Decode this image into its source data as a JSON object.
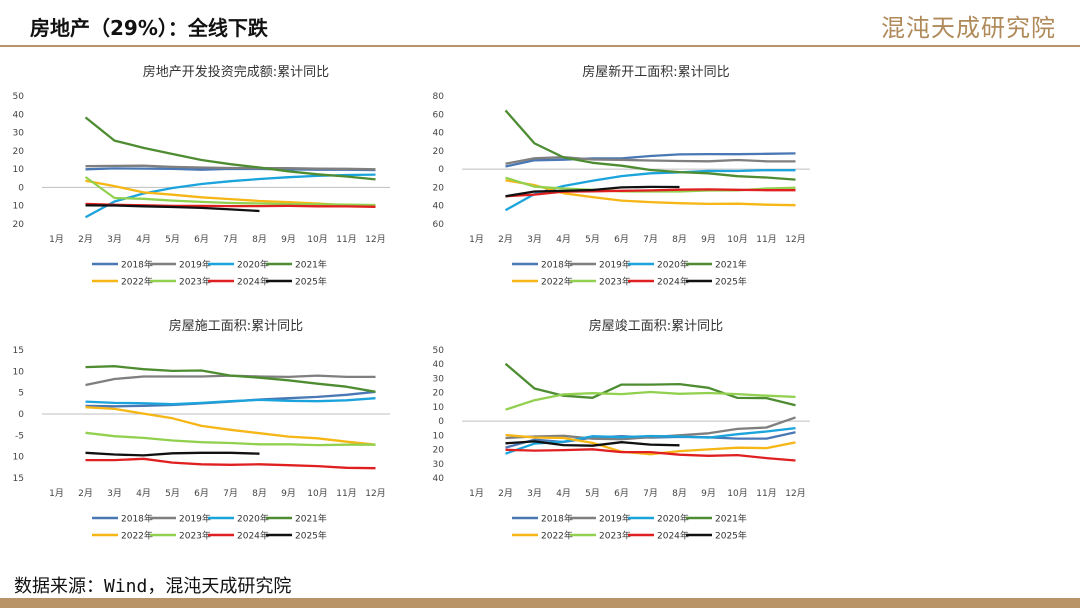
{
  "header": {
    "title": "房地产（29%）：全线下跌",
    "brand": "混沌天成研究院"
  },
  "footer": {
    "source": "数据来源：Wind，混沌天成研究院"
  },
  "colors": {
    "accent": "#b89466"
  },
  "chart_data": [
    {
      "type": "line",
      "title": "房地产开发投资完成额:累计同比",
      "categories": [
        "1月",
        "2月",
        "3月",
        "4月",
        "5月",
        "6月",
        "7月",
        "8月",
        "9月",
        "10月",
        "11月",
        "12月"
      ],
      "ylim": [
        -20,
        50
      ],
      "yticks": [
        -20,
        -10,
        0,
        10,
        20,
        30,
        40,
        50
      ],
      "series": [
        {
          "name": "2018年",
          "color": "#4a78b5",
          "values": [
            null,
            9.9,
            10.4,
            10.3,
            10.2,
            9.7,
            10.2,
            10.1,
            9.9,
            9.7,
            9.7,
            9.5
          ]
        },
        {
          "name": "2019年",
          "color": "#7f7f7f",
          "values": [
            null,
            11.6,
            11.8,
            11.9,
            11.2,
            10.9,
            10.6,
            10.5,
            10.5,
            10.3,
            10.2,
            9.9
          ]
        },
        {
          "name": "2020年",
          "color": "#1ba3dc",
          "values": [
            null,
            -16.3,
            -7.7,
            -3.3,
            -0.3,
            1.9,
            3.4,
            4.6,
            5.6,
            6.3,
            6.8,
            7.0
          ]
        },
        {
          "name": "2021年",
          "color": "#4e8c32",
          "values": [
            null,
            38.3,
            25.6,
            21.6,
            18.3,
            15.0,
            12.7,
            10.9,
            8.8,
            7.2,
            6.0,
            4.4
          ]
        },
        {
          "name": "2022年",
          "color": "#f5b616",
          "values": [
            null,
            3.7,
            0.7,
            -2.7,
            -4.0,
            -5.4,
            -6.4,
            -7.4,
            -8.0,
            -8.8,
            -9.8,
            -10.0
          ]
        },
        {
          "name": "2023年",
          "color": "#92d050",
          "values": [
            null,
            5.7,
            -5.8,
            -6.2,
            -7.2,
            -7.9,
            -8.5,
            -8.8,
            -9.1,
            -9.3,
            -9.4,
            -9.6
          ]
        },
        {
          "name": "2024年",
          "color": "#e02020",
          "values": [
            null,
            -9.0,
            -9.5,
            -9.8,
            -10.1,
            -10.1,
            -10.2,
            -10.2,
            -10.1,
            -10.3,
            -10.4,
            -10.6
          ]
        },
        {
          "name": "2025年",
          "color": "#111111",
          "values": [
            null,
            -9.8,
            -9.9,
            -10.3,
            -10.7,
            -11.2,
            -12.0,
            -12.9,
            null,
            null,
            null,
            null
          ]
        }
      ]
    },
    {
      "type": "line",
      "title": "房屋新开工面积:累计同比",
      "categories": [
        "1月",
        "2月",
        "3月",
        "4月",
        "5月",
        "6月",
        "7月",
        "8月",
        "9月",
        "10月",
        "11月",
        "12月"
      ],
      "ylim": [
        -60,
        80
      ],
      "yticks": [
        -60,
        -40,
        -20,
        0,
        20,
        40,
        60,
        80
      ],
      "series": [
        {
          "name": "2018年",
          "color": "#4a78b5",
          "values": [
            null,
            2.9,
            9.7,
            10.3,
            11.8,
            11.8,
            14.4,
            16.1,
            16.4,
            16.3,
            16.8,
            17.2
          ]
        },
        {
          "name": "2019年",
          "color": "#7f7f7f",
          "values": [
            null,
            6.0,
            11.9,
            13.1,
            10.5,
            10.1,
            9.5,
            8.9,
            8.6,
            10.0,
            8.6,
            8.5
          ]
        },
        {
          "name": "2020年",
          "color": "#1ba3dc",
          "values": [
            null,
            -44.9,
            -27.2,
            -18.4,
            -12.8,
            -7.6,
            -4.5,
            -3.6,
            -1.9,
            -2.0,
            -1.0,
            -1.2
          ]
        },
        {
          "name": "2021年",
          "color": "#4e8c32",
          "values": [
            null,
            64.3,
            28.2,
            12.8,
            6.9,
            3.8,
            -0.9,
            -3.2,
            -4.5,
            -7.7,
            -9.1,
            -11.4
          ]
        },
        {
          "name": "2022年",
          "color": "#f5b616",
          "values": [
            null,
            -12.2,
            -17.5,
            -26.3,
            -30.6,
            -34.4,
            -36.1,
            -37.2,
            -38.0,
            -37.8,
            -38.9,
            -39.4
          ]
        },
        {
          "name": "2023年",
          "color": "#92d050",
          "values": [
            null,
            -9.4,
            -19.2,
            -21.2,
            -22.6,
            -24.3,
            -24.5,
            -24.4,
            -23.4,
            -23.2,
            -21.2,
            -20.4
          ]
        },
        {
          "name": "2024年",
          "color": "#e02020",
          "values": [
            null,
            -29.7,
            -27.8,
            -24.6,
            -24.2,
            -23.7,
            -23.2,
            -22.5,
            -22.2,
            -22.6,
            -23.0,
            -23.0
          ]
        },
        {
          "name": "2025年",
          "color": "#111111",
          "values": [
            null,
            -29.6,
            -24.4,
            -23.8,
            -22.8,
            -20.0,
            -19.4,
            -19.5,
            null,
            null,
            null,
            null
          ]
        }
      ]
    },
    {
      "type": "line",
      "title": "房屋施工面积:累计同比",
      "categories": [
        "1月",
        "2月",
        "3月",
        "4月",
        "5月",
        "6月",
        "7月",
        "8月",
        "9月",
        "10月",
        "11月",
        "12月"
      ],
      "ylim": [
        -15,
        15
      ],
      "yticks": [
        -15,
        -10,
        -5,
        0,
        5,
        10,
        15
      ],
      "series": [
        {
          "name": "2018年",
          "color": "#4a78b5",
          "values": [
            null,
            1.9,
            1.8,
            1.9,
            2.1,
            2.5,
            2.9,
            3.4,
            3.7,
            4.0,
            4.5,
            5.2
          ]
        },
        {
          "name": "2019年",
          "color": "#7f7f7f",
          "values": [
            null,
            6.8,
            8.2,
            8.8,
            8.8,
            8.8,
            9.0,
            8.8,
            8.7,
            9.0,
            8.7,
            8.7
          ]
        },
        {
          "name": "2020年",
          "color": "#1ba3dc",
          "values": [
            null,
            2.9,
            2.6,
            2.5,
            2.3,
            2.6,
            3.0,
            3.3,
            3.1,
            3.0,
            3.2,
            3.7
          ]
        },
        {
          "name": "2021年",
          "color": "#4e8c32",
          "values": [
            null,
            11.0,
            11.2,
            10.5,
            10.1,
            10.2,
            9.0,
            8.5,
            7.9,
            7.1,
            6.4,
            5.2
          ]
        },
        {
          "name": "2022年",
          "color": "#f5b616",
          "values": [
            null,
            1.6,
            1.2,
            0.1,
            -1.0,
            -2.8,
            -3.7,
            -4.5,
            -5.3,
            -5.7,
            -6.5,
            -7.2
          ]
        },
        {
          "name": "2023年",
          "color": "#92d050",
          "values": [
            null,
            -4.4,
            -5.2,
            -5.6,
            -6.2,
            -6.6,
            -6.8,
            -7.1,
            -7.1,
            -7.3,
            -7.2,
            -7.2
          ]
        },
        {
          "name": "2024年",
          "color": "#e02020",
          "values": [
            null,
            -10.8,
            -10.8,
            -10.5,
            -11.4,
            -11.8,
            -11.9,
            -11.8,
            -12.0,
            -12.2,
            -12.6,
            -12.7
          ]
        },
        {
          "name": "2025年",
          "color": "#111111",
          "values": [
            null,
            -9.1,
            -9.5,
            -9.7,
            -9.2,
            -9.1,
            -9.1,
            -9.3,
            null,
            null,
            null,
            null
          ]
        }
      ]
    },
    {
      "type": "line",
      "title": "房屋竣工面积:累计同比",
      "categories": [
        "1月",
        "2月",
        "3月",
        "4月",
        "5月",
        "6月",
        "7月",
        "8月",
        "9月",
        "10月",
        "11月",
        "12月"
      ],
      "ylim": [
        -40,
        50
      ],
      "yticks": [
        -40,
        -30,
        -20,
        -10,
        0,
        10,
        20,
        30,
        40,
        50
      ],
      "series": [
        {
          "name": "2018年",
          "color": "#4a78b5",
          "values": [
            null,
            -18.6,
            -13.1,
            -14.7,
            -11.6,
            -10.6,
            -11.6,
            -11.0,
            -11.4,
            -12.3,
            -12.3,
            -7.8
          ]
        },
        {
          "name": "2019年",
          "color": "#7f7f7f",
          "values": [
            null,
            -11.9,
            -10.8,
            -10.3,
            -12.4,
            -12.7,
            -11.3,
            -10.0,
            -8.6,
            -5.5,
            -4.5,
            2.6
          ]
        },
        {
          "name": "2020年",
          "color": "#1ba3dc",
          "values": [
            null,
            -22.9,
            -15.8,
            -14.5,
            -10.6,
            -11.3,
            -10.5,
            -10.8,
            -11.6,
            -9.2,
            -7.3,
            -4.9
          ]
        },
        {
          "name": "2021年",
          "color": "#4e8c32",
          "values": [
            null,
            40.4,
            22.9,
            17.9,
            16.4,
            25.7,
            25.7,
            26.0,
            23.4,
            16.3,
            16.2,
            11.2
          ]
        },
        {
          "name": "2022年",
          "color": "#f5b616",
          "values": [
            null,
            -9.8,
            -11.5,
            -11.9,
            -15.3,
            -21.5,
            -23.3,
            -21.1,
            -19.9,
            -18.7,
            -19.0,
            -15.0
          ]
        },
        {
          "name": "2023年",
          "color": "#92d050",
          "values": [
            null,
            8.0,
            14.7,
            18.8,
            19.6,
            19.0,
            20.5,
            19.2,
            19.8,
            19.0,
            17.9,
            17.0
          ]
        },
        {
          "name": "2024年",
          "color": "#e02020",
          "values": [
            null,
            -20.2,
            -20.7,
            -20.4,
            -19.8,
            -21.8,
            -21.8,
            -23.6,
            -24.4,
            -23.9,
            -26.0,
            -27.7
          ]
        },
        {
          "name": "2025年",
          "color": "#111111",
          "values": [
            null,
            -15.6,
            -14.3,
            -16.9,
            -17.3,
            -14.8,
            -16.5,
            -17.0,
            null,
            null,
            null,
            null
          ]
        }
      ]
    }
  ]
}
